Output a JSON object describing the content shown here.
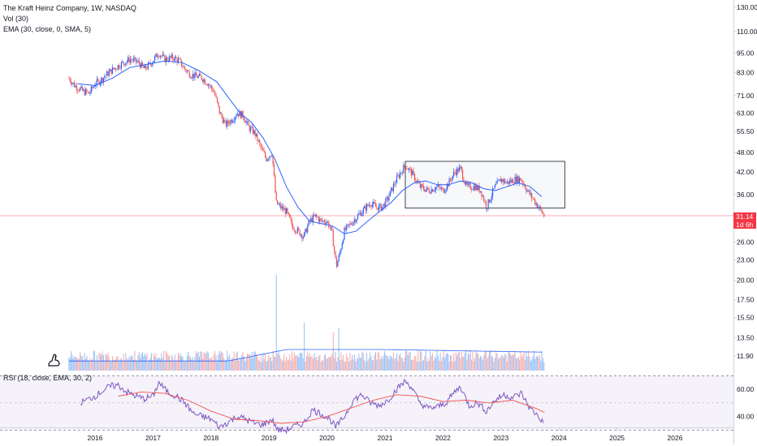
{
  "header": {
    "symbol_line": "The Kraft Heinz Company, 1W, NASDAQ",
    "vol_label": "Vol (30)",
    "ema_label": "EMA (30, close, 0, SMA, 5)",
    "rsi_label": "RSI (18, close, EMA, 30, 2)"
  },
  "price_badge": {
    "price": "31.14",
    "countdown": "1d 6h"
  },
  "colors": {
    "up": "#26a69a",
    "down": "#ef5350",
    "candle_up": "#2962ff",
    "candle_down": "#ef5350",
    "ema": "#2962ff",
    "rsi": "#7e57c2",
    "rsi_ma": "#ef5350",
    "badge": "#f23645"
  },
  "chart_data": [
    {
      "type": "candlestick",
      "title": "The Kraft Heinz Company, 1W, NASDAQ",
      "x_ticks": [
        "2016",
        "2017",
        "2018",
        "2019",
        "2020",
        "2021",
        "2022",
        "2023",
        "2024",
        "2025",
        "2026"
      ],
      "y_ticks": [
        "130.00",
        "110.00",
        "95.00",
        "83.00",
        "71.00",
        "63.00",
        "55.50",
        "48.00",
        "42.00",
        "36.00",
        "31.14",
        "26.00",
        "23.00",
        "20.00",
        "17.50",
        "15.50",
        "13.50",
        "11.90"
      ],
      "y_scale": "log",
      "xlim": [
        2015.5,
        2026.9
      ],
      "ylim": [
        11.5,
        132
      ],
      "price_path": [
        [
          2015.55,
          80
        ],
        [
          2015.65,
          76
        ],
        [
          2015.8,
          73
        ],
        [
          2015.9,
          72
        ],
        [
          2016.0,
          77
        ],
        [
          2016.1,
          79
        ],
        [
          2016.2,
          82
        ],
        [
          2016.35,
          86
        ],
        [
          2016.5,
          89
        ],
        [
          2016.6,
          91
        ],
        [
          2016.75,
          89
        ],
        [
          2016.85,
          85
        ],
        [
          2016.95,
          88
        ],
        [
          2017.1,
          95
        ],
        [
          2017.2,
          91
        ],
        [
          2017.35,
          92
        ],
        [
          2017.45,
          90
        ],
        [
          2017.55,
          85
        ],
        [
          2017.65,
          82
        ],
        [
          2017.75,
          81
        ],
        [
          2017.85,
          80
        ],
        [
          2017.95,
          77
        ],
        [
          2018.05,
          73
        ],
        [
          2018.15,
          63
        ],
        [
          2018.25,
          58
        ],
        [
          2018.35,
          60
        ],
        [
          2018.45,
          63
        ],
        [
          2018.55,
          62
        ],
        [
          2018.65,
          57
        ],
        [
          2018.75,
          55
        ],
        [
          2018.85,
          50
        ],
        [
          2018.95,
          46
        ],
        [
          2019.05,
          48
        ],
        [
          2019.12,
          34
        ],
        [
          2019.2,
          33
        ],
        [
          2019.3,
          32
        ],
        [
          2019.4,
          29
        ],
        [
          2019.5,
          28
        ],
        [
          2019.6,
          27
        ],
        [
          2019.7,
          30
        ],
        [
          2019.8,
          31
        ],
        [
          2019.9,
          30
        ],
        [
          2020.0,
          30
        ],
        [
          2020.08,
          28
        ],
        [
          2020.16,
          22
        ],
        [
          2020.22,
          24
        ],
        [
          2020.3,
          28
        ],
        [
          2020.45,
          30
        ],
        [
          2020.6,
          32
        ],
        [
          2020.75,
          34
        ],
        [
          2020.85,
          33
        ],
        [
          2020.95,
          33
        ],
        [
          2021.05,
          35
        ],
        [
          2021.2,
          40
        ],
        [
          2021.35,
          44
        ],
        [
          2021.45,
          42
        ],
        [
          2021.6,
          38
        ],
        [
          2021.75,
          37
        ],
        [
          2021.9,
          38
        ],
        [
          2022.0,
          37
        ],
        [
          2022.1,
          39
        ],
        [
          2022.2,
          42
        ],
        [
          2022.3,
          43
        ],
        [
          2022.4,
          38
        ],
        [
          2022.55,
          38
        ],
        [
          2022.65,
          37
        ],
        [
          2022.75,
          33
        ],
        [
          2022.9,
          38
        ],
        [
          2023.0,
          40
        ],
        [
          2023.1,
          39
        ],
        [
          2023.25,
          40
        ],
        [
          2023.35,
          40
        ],
        [
          2023.45,
          37
        ],
        [
          2023.55,
          35
        ],
        [
          2023.65,
          33
        ],
        [
          2023.75,
          31
        ]
      ],
      "ema_path": [
        [
          2015.7,
          77
        ],
        [
          2016.0,
          76
        ],
        [
          2016.3,
          80
        ],
        [
          2016.6,
          86
        ],
        [
          2016.9,
          88
        ],
        [
          2017.2,
          90
        ],
        [
          2017.5,
          89
        ],
        [
          2017.8,
          84
        ],
        [
          2018.1,
          78
        ],
        [
          2018.3,
          70
        ],
        [
          2018.5,
          63
        ],
        [
          2018.7,
          59
        ],
        [
          2018.9,
          53
        ],
        [
          2019.1,
          46
        ],
        [
          2019.3,
          38
        ],
        [
          2019.5,
          33
        ],
        [
          2019.7,
          30
        ],
        [
          2019.9,
          29.5
        ],
        [
          2020.1,
          29
        ],
        [
          2020.3,
          27.5
        ],
        [
          2020.5,
          28
        ],
        [
          2020.7,
          30
        ],
        [
          2020.9,
          32
        ],
        [
          2021.1,
          34
        ],
        [
          2021.3,
          37
        ],
        [
          2021.5,
          39
        ],
        [
          2021.7,
          39.5
        ],
        [
          2021.9,
          38.5
        ],
        [
          2022.1,
          38.5
        ],
        [
          2022.3,
          39.5
        ],
        [
          2022.5,
          39
        ],
        [
          2022.7,
          37.5
        ],
        [
          2022.9,
          37
        ],
        [
          2023.1,
          38
        ],
        [
          2023.3,
          39
        ],
        [
          2023.5,
          38
        ],
        [
          2023.7,
          35.5
        ]
      ],
      "range_box": {
        "x_start": 2021.35,
        "x_end": 2024.1,
        "y_low": 32.8,
        "y_high": 45.2
      },
      "last_price": 31.14
    },
    {
      "type": "bar",
      "title": "Vol (30)",
      "description_values": "weekly volume bars, mostly steady with spikes in early 2019 and 2020",
      "spikes": [
        [
          2019.12,
          1.0
        ],
        [
          2019.6,
          0.5
        ],
        [
          2020.1,
          0.4
        ],
        [
          2020.2,
          0.45
        ]
      ],
      "baseline_level": 0.15
    },
    {
      "type": "line",
      "title": "RSI (18, close, EMA, 30, 2)",
      "y_ticks": [
        "60.00",
        "40.00"
      ],
      "ylim": [
        33,
        73
      ],
      "series": [
        {
          "name": "RSI",
          "values": [
            [
              2015.75,
              50
            ],
            [
              2015.85,
              52
            ],
            [
              2016.0,
              55
            ],
            [
              2016.1,
              58
            ],
            [
              2016.25,
              62
            ],
            [
              2016.4,
              63
            ],
            [
              2016.55,
              58
            ],
            [
              2016.7,
              55
            ],
            [
              2016.85,
              53
            ],
            [
              2017.0,
              55
            ],
            [
              2017.1,
              65
            ],
            [
              2017.25,
              58
            ],
            [
              2017.4,
              55
            ],
            [
              2017.55,
              50
            ],
            [
              2017.7,
              42
            ],
            [
              2017.85,
              40
            ],
            [
              2018.0,
              38
            ],
            [
              2018.15,
              32
            ],
            [
              2018.3,
              36
            ],
            [
              2018.45,
              40
            ],
            [
              2018.6,
              38
            ],
            [
              2018.75,
              35
            ],
            [
              2018.9,
              34
            ],
            [
              2019.05,
              38
            ],
            [
              2019.15,
              30
            ],
            [
              2019.3,
              30
            ],
            [
              2019.45,
              33
            ],
            [
              2019.6,
              35
            ],
            [
              2019.75,
              45
            ],
            [
              2019.9,
              42
            ],
            [
              2020.05,
              38
            ],
            [
              2020.15,
              32
            ],
            [
              2020.3,
              40
            ],
            [
              2020.45,
              52
            ],
            [
              2020.6,
              56
            ],
            [
              2020.75,
              50
            ],
            [
              2020.9,
              48
            ],
            [
              2021.05,
              52
            ],
            [
              2021.2,
              60
            ],
            [
              2021.35,
              66
            ],
            [
              2021.45,
              62
            ],
            [
              2021.6,
              50
            ],
            [
              2021.75,
              46
            ],
            [
              2021.9,
              47
            ],
            [
              2022.05,
              50
            ],
            [
              2022.2,
              58
            ],
            [
              2022.3,
              62
            ],
            [
              2022.45,
              48
            ],
            [
              2022.6,
              50
            ],
            [
              2022.75,
              44
            ],
            [
              2022.9,
              52
            ],
            [
              2023.05,
              56
            ],
            [
              2023.2,
              54
            ],
            [
              2023.35,
              57
            ],
            [
              2023.5,
              46
            ],
            [
              2023.65,
              40
            ],
            [
              2023.75,
              34
            ]
          ]
        },
        {
          "name": "RSI-based MA",
          "values": [
            [
              2016.4,
              55
            ],
            [
              2016.8,
              58
            ],
            [
              2017.2,
              57
            ],
            [
              2017.6,
              52
            ],
            [
              2018.0,
              44
            ],
            [
              2018.4,
              38
            ],
            [
              2018.8,
              37
            ],
            [
              2019.2,
              35
            ],
            [
              2019.6,
              36
            ],
            [
              2020.0,
              40
            ],
            [
              2020.4,
              46
            ],
            [
              2020.8,
              52
            ],
            [
              2021.2,
              56
            ],
            [
              2021.6,
              55
            ],
            [
              2022.0,
              51
            ],
            [
              2022.4,
              52
            ],
            [
              2022.8,
              50
            ],
            [
              2023.2,
              52
            ],
            [
              2023.6,
              46
            ],
            [
              2023.75,
              43
            ]
          ]
        }
      ],
      "bands": [
        70,
        30
      ]
    }
  ]
}
